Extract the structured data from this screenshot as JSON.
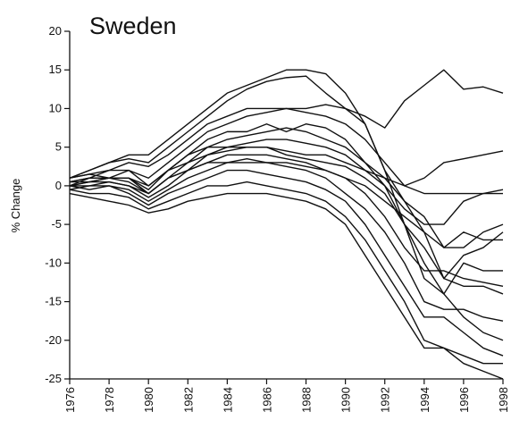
{
  "chart_data": {
    "type": "line",
    "title": "Sweden",
    "y_label": "% Change",
    "x": [
      1976,
      1977,
      1978,
      1979,
      1980,
      1981,
      1982,
      1983,
      1984,
      1985,
      1986,
      1987,
      1988,
      1989,
      1990,
      1991,
      1992,
      1993,
      1994,
      1995,
      1996,
      1997,
      1998
    ],
    "xlim": [
      1976,
      1998
    ],
    "xticks": [
      1976,
      1978,
      1980,
      1982,
      1984,
      1986,
      1988,
      1990,
      1992,
      1994,
      1996,
      1998
    ],
    "ylim": [
      -25,
      20
    ],
    "yticks": [
      -25,
      -20,
      -15,
      -10,
      -5,
      0,
      5,
      10,
      15,
      20
    ],
    "grid": false,
    "series": [
      {
        "color": "#111",
        "values": [
          1,
          2,
          3,
          4,
          4,
          6,
          8,
          10,
          12,
          13,
          14,
          15,
          15,
          14.5,
          12,
          8,
          2,
          -5,
          -12,
          -14,
          -17,
          -19,
          -20
        ]
      },
      {
        "color": "#111",
        "values": [
          1,
          2,
          3,
          3.5,
          3,
          5,
          7,
          9,
          11,
          12.5,
          13.5,
          14,
          14.2,
          12,
          10,
          9,
          7.5,
          11,
          13,
          15,
          12.5,
          12.8,
          12
        ]
      },
      {
        "color": "#111",
        "values": [
          1,
          1.5,
          2,
          3,
          2.5,
          4,
          6,
          8,
          9,
          10,
          10,
          10,
          9.5,
          9,
          8,
          6,
          3,
          0,
          1,
          3,
          3.5,
          4,
          4.5
        ]
      },
      {
        "color": "#111",
        "values": [
          0.5,
          1,
          2,
          2,
          1,
          3,
          5,
          7,
          8,
          9,
          9.5,
          10,
          10,
          10.5,
          10,
          8,
          2,
          -2,
          -6,
          -12,
          -9,
          -8,
          -6
        ]
      },
      {
        "color": "#111",
        "values": [
          1,
          1.5,
          1,
          1,
          0,
          2,
          4,
          6,
          7,
          7,
          8,
          7,
          8,
          7.5,
          6,
          3,
          0,
          -5,
          -10,
          -14,
          -10,
          -11,
          -11
        ]
      },
      {
        "color": "#111",
        "values": [
          0,
          1,
          1,
          2,
          0,
          2,
          3,
          5,
          6,
          6.5,
          7,
          7.5,
          7,
          6,
          5,
          3,
          1,
          -2,
          -4,
          -8,
          -6,
          -7,
          -7
        ]
      },
      {
        "color": "#111",
        "values": [
          0.5,
          0.5,
          1,
          1,
          -1,
          1,
          3,
          4,
          5,
          5.5,
          6,
          6,
          5.5,
          5,
          4,
          2,
          0,
          -3,
          -5,
          -5,
          -2,
          -1,
          -0.5
        ]
      },
      {
        "color": "#111",
        "values": [
          0,
          0,
          0.5,
          0,
          -1,
          1,
          2,
          4,
          4.5,
          5,
          5,
          4,
          3.5,
          3,
          2.5,
          1,
          -1,
          -5,
          -8,
          -12,
          -13,
          -13,
          -14
        ]
      },
      {
        "color": "#111",
        "values": [
          0,
          0.5,
          0.5,
          0,
          -1.5,
          0,
          2,
          3,
          4,
          4,
          4,
          3.5,
          3,
          2,
          1,
          -1,
          -4,
          -8,
          -11,
          -11,
          -12,
          -12.5,
          -13
        ]
      },
      {
        "color": "#111",
        "values": [
          -0.5,
          0,
          0,
          -0.5,
          -2,
          -0.5,
          1,
          2,
          3,
          3,
          3,
          2.5,
          2,
          1,
          -1,
          -3,
          -6,
          -10,
          -15,
          -16,
          -16,
          -17,
          -17.5
        ]
      },
      {
        "color": "#111",
        "values": [
          0,
          -0.5,
          0,
          -1,
          -2.5,
          -1,
          0,
          1,
          2,
          2,
          1.5,
          1,
          0.5,
          -0.5,
          -2,
          -5,
          -9,
          -13,
          -17,
          -17,
          -19,
          -21,
          -22
        ]
      },
      {
        "color": "#111",
        "values": [
          -0.5,
          -1,
          -1,
          -1.5,
          -3,
          -2,
          -1,
          0,
          0,
          0.5,
          0,
          -0.5,
          -1,
          -2,
          -4,
          -7,
          -11,
          -15,
          -20,
          -21,
          -22,
          -23,
          -23
        ]
      },
      {
        "color": "#111",
        "values": [
          -1,
          -1.5,
          -2,
          -2.5,
          -3.5,
          -3,
          -2,
          -1.5,
          -1,
          -1,
          -1,
          -1.5,
          -2,
          -3,
          -5,
          -9,
          -13,
          -17,
          -21,
          -21,
          -23,
          -24,
          -25
        ]
      },
      {
        "color": "#111",
        "values": [
          0.5,
          1,
          1,
          1,
          -0.5,
          2,
          4,
          5,
          5,
          5,
          5,
          4.5,
          4,
          4,
          3,
          2,
          1,
          0,
          -1,
          -1,
          -1,
          -1,
          -1
        ]
      },
      {
        "color": "#111",
        "values": [
          0,
          0.5,
          1,
          0.5,
          -1,
          1,
          2,
          3,
          3,
          3.5,
          3,
          3,
          2.5,
          2,
          1,
          0,
          -2,
          -4,
          -6,
          -8,
          -8,
          -6,
          -5
        ]
      }
    ]
  }
}
